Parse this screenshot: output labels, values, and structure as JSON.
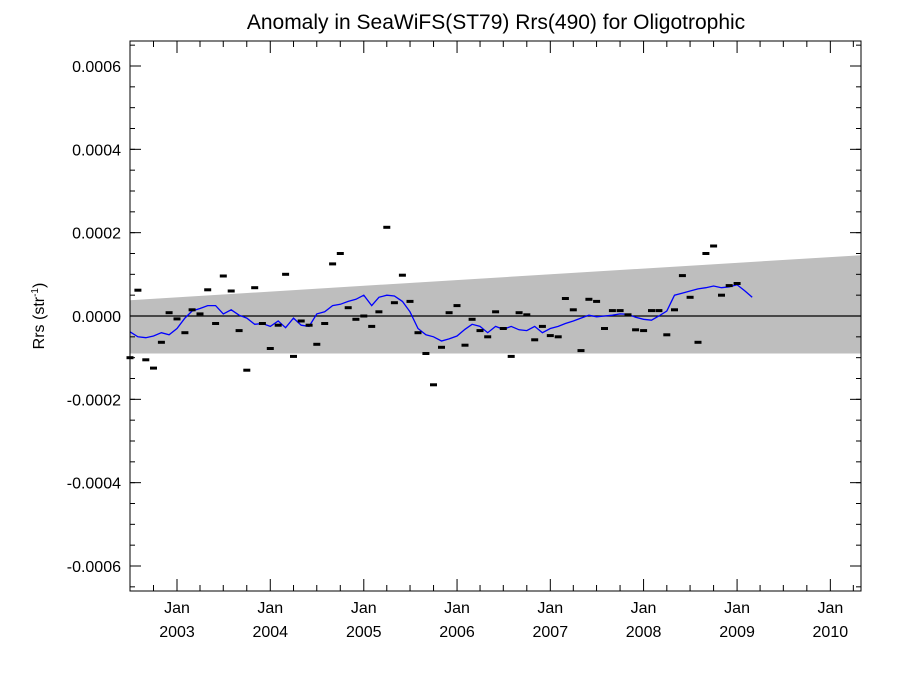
{
  "chart_data": {
    "type": "scatter",
    "title": "Anomaly in SeaWiFS(ST79) Rrs(490) for Oligotrophic",
    "ylabel": {
      "main": "Rrs (str",
      "sup": "-1",
      "end": ")"
    },
    "xlabel": "",
    "xlim": [
      "2002-07-01",
      "2010-05-01"
    ],
    "ylim": [
      -0.00066,
      0.00066
    ],
    "yticks": [
      {
        "value": 0.0006,
        "label": "0.0006"
      },
      {
        "value": 0.0004,
        "label": "0.0004"
      },
      {
        "value": 0.0002,
        "label": "0.0002"
      },
      {
        "value": 0.0,
        "label": "0.0000"
      },
      {
        "value": -0.0002,
        "label": "-0.0002"
      },
      {
        "value": -0.0004,
        "label": "-0.0004"
      },
      {
        "value": -0.0006,
        "label": "-0.0006"
      }
    ],
    "xticks": [
      {
        "date": "2003-01-01",
        "month": "Jan",
        "year": "2003"
      },
      {
        "date": "2004-01-01",
        "month": "Jan",
        "year": "2004"
      },
      {
        "date": "2005-01-01",
        "month": "Jan",
        "year": "2005"
      },
      {
        "date": "2006-01-01",
        "month": "Jan",
        "year": "2006"
      },
      {
        "date": "2007-01-01",
        "month": "Jan",
        "year": "2007"
      },
      {
        "date": "2008-01-01",
        "month": "Jan",
        "year": "2008"
      },
      {
        "date": "2009-01-01",
        "month": "Jan",
        "year": "2009"
      },
      {
        "date": "2010-01-01",
        "month": "Jan",
        "year": "2010"
      }
    ],
    "confidence_band": {
      "x": [
        "2002-07-01",
        "2010-05-01"
      ],
      "upper": [
        3.8e-05,
        0.000146
      ],
      "lower": [
        -9e-05,
        -9e-05
      ],
      "color": "#bebebe"
    },
    "zero_line": {
      "y": 0.0,
      "color": "#000000"
    },
    "series": [
      {
        "marker": "dash",
        "color": "#000000",
        "points": [
          [
            "2002-07-01",
            -0.0001
          ],
          [
            "2002-08-01",
            6.2e-05
          ],
          [
            "2002-09-01",
            -0.000105
          ],
          [
            "2002-10-01",
            -0.000125
          ],
          [
            "2002-11-01",
            -6.3e-05
          ],
          [
            "2002-12-01",
            8e-06
          ],
          [
            "2003-01-01",
            -7e-06
          ],
          [
            "2003-02-01",
            -4e-05
          ],
          [
            "2003-03-01",
            1.5e-05
          ],
          [
            "2003-04-01",
            5e-06
          ],
          [
            "2003-05-01",
            6.3e-05
          ],
          [
            "2003-06-01",
            -1.8e-05
          ],
          [
            "2003-07-01",
            9.6e-05
          ],
          [
            "2003-08-01",
            6e-05
          ],
          [
            "2003-09-01",
            -3.5e-05
          ],
          [
            "2003-10-01",
            -0.00013
          ],
          [
            "2003-11-01",
            6.8e-05
          ],
          [
            "2003-12-01",
            -1.8e-05
          ],
          [
            "2004-01-01",
            -7.8e-05
          ],
          [
            "2004-02-01",
            -2.2e-05
          ],
          [
            "2004-03-01",
            0.0001
          ],
          [
            "2004-04-01",
            -9.7e-05
          ],
          [
            "2004-05-01",
            -1.2e-05
          ],
          [
            "2004-06-01",
            -2.2e-05
          ],
          [
            "2004-07-01",
            -6.8e-05
          ],
          [
            "2004-08-01",
            -1.8e-05
          ],
          [
            "2004-09-01",
            0.000125
          ],
          [
            "2004-10-01",
            0.00015
          ],
          [
            "2004-11-01",
            2e-05
          ],
          [
            "2004-12-01",
            -8e-06
          ],
          [
            "2005-01-01",
            0.0
          ],
          [
            "2005-02-01",
            -2.5e-05
          ],
          [
            "2005-03-01",
            1e-05
          ],
          [
            "2005-04-01",
            0.000213
          ],
          [
            "2005-05-01",
            3.2e-05
          ],
          [
            "2005-06-01",
            9.8e-05
          ],
          [
            "2005-07-01",
            3.5e-05
          ],
          [
            "2005-08-01",
            -4e-05
          ],
          [
            "2005-09-01",
            -9e-05
          ],
          [
            "2005-10-01",
            -0.000165
          ],
          [
            "2005-11-01",
            -7.5e-05
          ],
          [
            "2005-12-01",
            8e-06
          ],
          [
            "2006-01-01",
            2.5e-05
          ],
          [
            "2006-02-01",
            -7e-05
          ],
          [
            "2006-03-01",
            -8e-06
          ],
          [
            "2006-04-01",
            -3.5e-05
          ],
          [
            "2006-05-01",
            -5e-05
          ],
          [
            "2006-06-01",
            1e-05
          ],
          [
            "2006-07-01",
            -3e-05
          ],
          [
            "2006-08-01",
            -9.7e-05
          ],
          [
            "2006-09-01",
            8e-06
          ],
          [
            "2006-10-01",
            3e-06
          ],
          [
            "2006-11-01",
            -5.7e-05
          ],
          [
            "2006-12-01",
            -2.5e-05
          ],
          [
            "2007-01-01",
            -4.7e-05
          ],
          [
            "2007-02-01",
            -5e-05
          ],
          [
            "2007-03-01",
            4.2e-05
          ],
          [
            "2007-04-01",
            1.5e-05
          ],
          [
            "2007-05-01",
            -8.3e-05
          ],
          [
            "2007-06-01",
            4e-05
          ],
          [
            "2007-07-01",
            3.5e-05
          ],
          [
            "2007-08-01",
            -3e-05
          ],
          [
            "2007-09-01",
            1.3e-05
          ],
          [
            "2007-10-01",
            1.3e-05
          ],
          [
            "2007-11-01",
            3e-06
          ],
          [
            "2007-12-01",
            -3.3e-05
          ],
          [
            "2008-01-01",
            -3.5e-05
          ],
          [
            "2008-02-01",
            1.3e-05
          ],
          [
            "2008-03-01",
            1.3e-05
          ],
          [
            "2008-04-01",
            -4.5e-05
          ],
          [
            "2008-05-01",
            1.5e-05
          ],
          [
            "2008-06-01",
            9.7e-05
          ],
          [
            "2008-07-01",
            4.5e-05
          ],
          [
            "2008-08-01",
            -6.3e-05
          ],
          [
            "2008-09-01",
            0.00015
          ],
          [
            "2008-10-01",
            0.000168
          ],
          [
            "2008-11-01",
            5e-05
          ],
          [
            "2008-12-01",
            7.3e-05
          ],
          [
            "2009-01-01",
            7.8e-05
          ]
        ]
      },
      {
        "marker": "line",
        "color": "#0000ff",
        "points": [
          [
            "2002-07-01",
            -3.8e-05
          ],
          [
            "2002-08-01",
            -5e-05
          ],
          [
            "2002-09-01",
            -5.2e-05
          ],
          [
            "2002-10-01",
            -4.8e-05
          ],
          [
            "2002-11-01",
            -4e-05
          ],
          [
            "2002-12-01",
            -4.5e-05
          ],
          [
            "2003-01-01",
            -3e-05
          ],
          [
            "2003-02-01",
            -5e-06
          ],
          [
            "2003-03-01",
            1.2e-05
          ],
          [
            "2003-04-01",
            1.8e-05
          ],
          [
            "2003-05-01",
            2.5e-05
          ],
          [
            "2003-06-01",
            2.5e-05
          ],
          [
            "2003-07-01",
            5e-06
          ],
          [
            "2003-08-01",
            1.5e-05
          ],
          [
            "2003-09-01",
            2e-06
          ],
          [
            "2003-10-01",
            -5e-06
          ],
          [
            "2003-11-01",
            -2e-05
          ],
          [
            "2003-12-01",
            -1.8e-05
          ],
          [
            "2004-01-01",
            -2.5e-05
          ],
          [
            "2004-02-01",
            -1.2e-05
          ],
          [
            "2004-03-01",
            -2.8e-05
          ],
          [
            "2004-04-01",
            -5e-06
          ],
          [
            "2004-05-01",
            -2.2e-05
          ],
          [
            "2004-06-01",
            -2.5e-05
          ],
          [
            "2004-07-01",
            5e-06
          ],
          [
            "2004-08-01",
            1e-05
          ],
          [
            "2004-09-01",
            2.5e-05
          ],
          [
            "2004-10-01",
            2.8e-05
          ],
          [
            "2004-11-01",
            3.5e-05
          ],
          [
            "2004-12-01",
            4e-05
          ],
          [
            "2005-01-01",
            5e-05
          ],
          [
            "2005-02-01",
            2.5e-05
          ],
          [
            "2005-03-01",
            4.5e-05
          ],
          [
            "2005-04-01",
            5e-05
          ],
          [
            "2005-05-01",
            4.8e-05
          ],
          [
            "2005-06-01",
            3.5e-05
          ],
          [
            "2005-07-01",
            1e-05
          ],
          [
            "2005-08-01",
            -3e-05
          ],
          [
            "2005-09-01",
            -4.5e-05
          ],
          [
            "2005-10-01",
            -5e-05
          ],
          [
            "2005-11-01",
            -6e-05
          ],
          [
            "2005-12-01",
            -5.5e-05
          ],
          [
            "2006-01-01",
            -4.8e-05
          ],
          [
            "2006-02-01",
            -3.2e-05
          ],
          [
            "2006-03-01",
            -2e-05
          ],
          [
            "2006-04-01",
            -2.5e-05
          ],
          [
            "2006-05-01",
            -4e-05
          ],
          [
            "2006-06-01",
            -2.5e-05
          ],
          [
            "2006-07-01",
            -3.2e-05
          ],
          [
            "2006-08-01",
            -2.5e-05
          ],
          [
            "2006-09-01",
            -3.3e-05
          ],
          [
            "2006-10-01",
            -3.5e-05
          ],
          [
            "2006-11-01",
            -2.5e-05
          ],
          [
            "2006-12-01",
            -4e-05
          ],
          [
            "2007-01-01",
            -3e-05
          ],
          [
            "2007-02-01",
            -2.5e-05
          ],
          [
            "2007-03-01",
            -1.8e-05
          ],
          [
            "2007-04-01",
            -1.2e-05
          ],
          [
            "2007-05-01",
            -5e-06
          ],
          [
            "2007-06-01",
            2e-06
          ],
          [
            "2007-07-01",
            -2e-06
          ],
          [
            "2007-08-01",
            0.0
          ],
          [
            "2007-09-01",
            2e-06
          ],
          [
            "2007-10-01",
            5e-06
          ],
          [
            "2007-11-01",
            4e-06
          ],
          [
            "2007-12-01",
            -3e-06
          ],
          [
            "2008-01-01",
            -8e-06
          ],
          [
            "2008-02-01",
            -1e-05
          ],
          [
            "2008-03-01",
            0.0
          ],
          [
            "2008-04-01",
            1.2e-05
          ],
          [
            "2008-05-01",
            5e-05
          ],
          [
            "2008-06-01",
            5.5e-05
          ],
          [
            "2008-07-01",
            6e-05
          ],
          [
            "2008-08-01",
            6.5e-05
          ],
          [
            "2008-09-01",
            6.8e-05
          ],
          [
            "2008-10-01",
            7.2e-05
          ],
          [
            "2008-11-01",
            6.8e-05
          ],
          [
            "2008-12-01",
            7e-05
          ],
          [
            "2009-01-01",
            7.5e-05
          ],
          [
            "2009-02-01",
            6e-05
          ],
          [
            "2009-03-01",
            4.5e-05
          ]
        ]
      }
    ],
    "grid": false,
    "legend": "none"
  }
}
